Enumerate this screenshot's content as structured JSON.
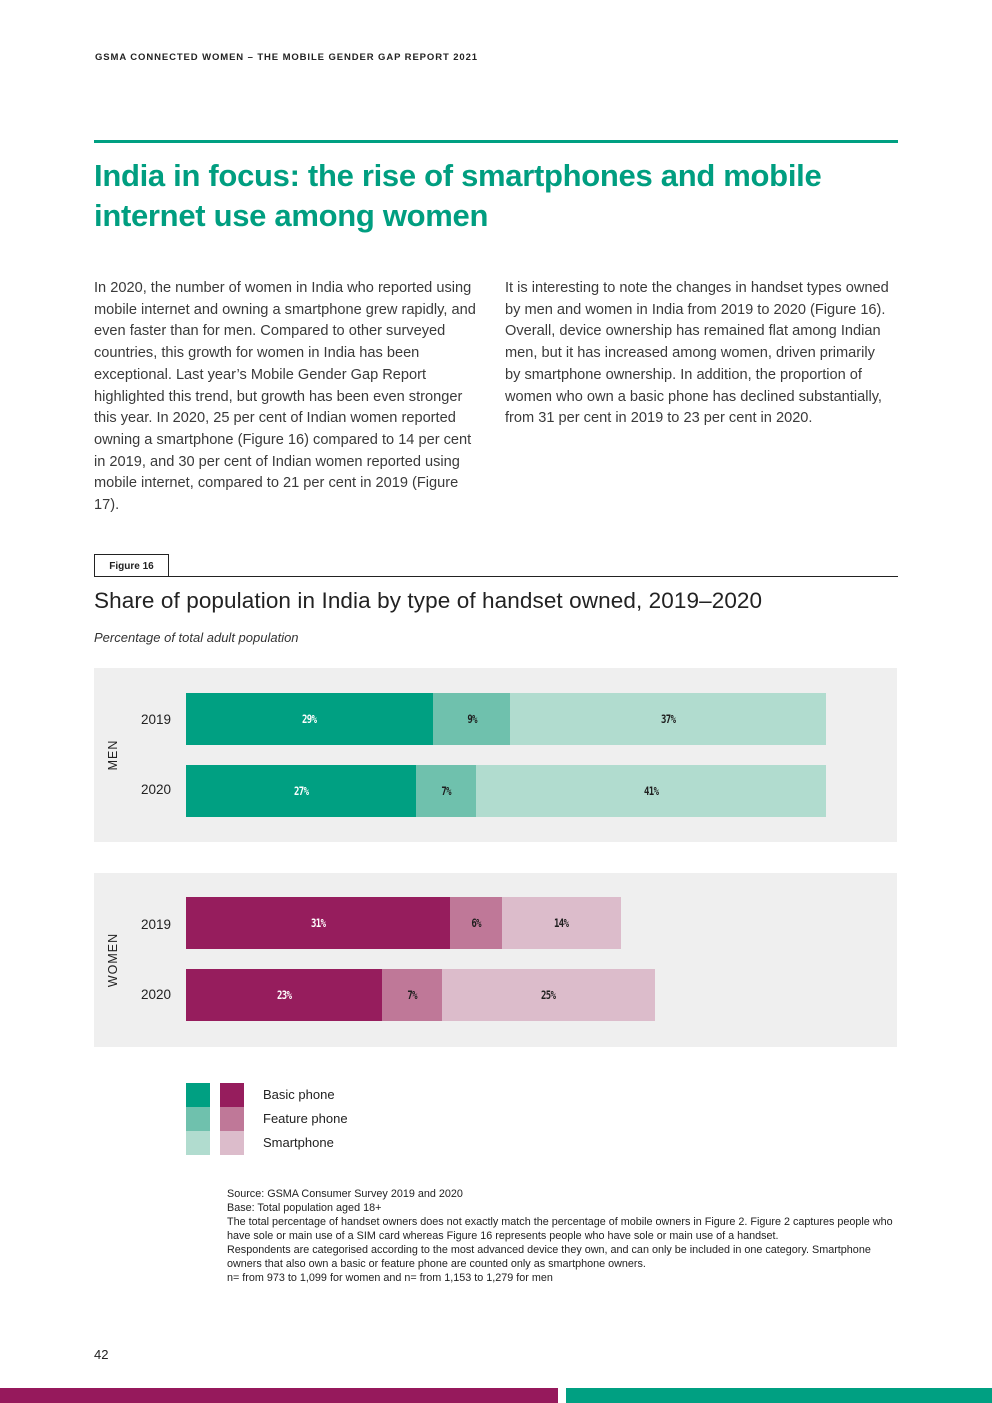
{
  "header": {
    "running_head": "GSMA CONNECTED WOMEN – THE MOBILE GENDER GAP REPORT 2021"
  },
  "section": {
    "title": "India in focus: the rise of smartphones and mobile internet use among women"
  },
  "body": {
    "left_paragraph": "In 2020, the number of women in India who reported using mobile internet and owning a smartphone grew rapidly, and even faster than for men. Compared to other surveyed countries, this growth for women in India has been exceptional. Last year’s Mobile Gender Gap Report highlighted this trend, but growth has been even stronger this year. In 2020, 25 per cent of Indian women reported owning a smartphone (Figure 16) compared to 14 per cent in 2019, and 30 per cent of Indian women reported using mobile internet, compared to 21 per cent in 2019 (Figure 17).",
    "right_paragraph": "It is interesting to note the changes in handset types owned by men and women in India from 2019 to 2020 (Figure 16). Overall, device ownership has remained flat among Indian men, but it has increased among women, driven primarily by smartphone ownership. In addition, the proportion of women who own a basic phone has declined substantially, from 31 per cent in 2019 to 23 per cent in 2020."
  },
  "figure": {
    "tag": "Figure 16",
    "title": "Share of population in India by type of handset owned, 2019–2020",
    "subtitle": "Percentage of total adult population"
  },
  "chart_data": {
    "type": "bar",
    "orientation": "horizontal",
    "stacked": true,
    "title": "Share of population in India by type of handset owned, 2019–2020",
    "ylabel": "Percentage of total adult population",
    "xlim": [
      0,
      100
    ],
    "series_names": [
      "Basic phone",
      "Feature phone",
      "Smartphone"
    ],
    "groups": [
      {
        "name": "MEN",
        "colors": [
          "#00a082",
          "#6fc1ad",
          "#b1dccf"
        ],
        "text_colors": [
          "#ffffff",
          "#1e1e1e",
          "#1e1e1e"
        ],
        "rows": [
          {
            "year": "2019",
            "values": [
              29,
              9,
              37
            ],
            "labels": [
              "29%",
              "9%",
              "37%"
            ]
          },
          {
            "year": "2020",
            "values": [
              27,
              7,
              41
            ],
            "labels": [
              "27%",
              "7%",
              "41%"
            ]
          }
        ]
      },
      {
        "name": "WOMEN",
        "colors": [
          "#961d5d",
          "#bf7898",
          "#dcbccb"
        ],
        "text_colors": [
          "#ffffff",
          "#1e1e1e",
          "#1e1e1e"
        ],
        "rows": [
          {
            "year": "2019",
            "values": [
              31,
              6,
              14
            ],
            "labels": [
              "31%",
              "6%",
              "14%"
            ]
          },
          {
            "year": "2020",
            "values": [
              23,
              7,
              25
            ],
            "labels": [
              "23%",
              "7%",
              "25%"
            ]
          }
        ]
      }
    ]
  },
  "legend": {
    "items": [
      {
        "label": "Basic phone",
        "men_color": "#00a082",
        "women_color": "#961d5d"
      },
      {
        "label": "Feature phone",
        "men_color": "#6fc1ad",
        "women_color": "#bf7898"
      },
      {
        "label": "Smartphone",
        "men_color": "#b1dccf",
        "women_color": "#dcbccb"
      }
    ]
  },
  "source_notes": {
    "lines": [
      "Source: GSMA Consumer Survey 2019 and 2020",
      "Base: Total population aged 18+",
      "The total percentage of handset owners does not exactly match the percentage of mobile owners in Figure 2. Figure 2 captures people who have sole or main use of a SIM card whereas Figure 16 represents people who have sole or main use of a handset.",
      "Respondents are categorised according to the most advanced device they own, and can only be included in one category. Smartphone owners that also own a basic or feature phone are counted only as smartphone owners.",
      "n= from 973 to 1,099 for women and n= from 1,153 to 1,279 for men"
    ]
  },
  "footer": {
    "page_number": "42"
  },
  "colors": {
    "accent_green": "#00a082",
    "accent_magenta": "#96195c"
  }
}
